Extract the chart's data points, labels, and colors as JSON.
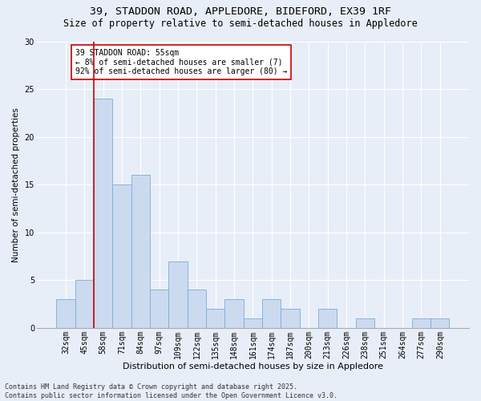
{
  "title1": "39, STADDON ROAD, APPLEDORE, BIDEFORD, EX39 1RF",
  "title2": "Size of property relative to semi-detached houses in Appledore",
  "xlabel": "Distribution of semi-detached houses by size in Appledore",
  "ylabel": "Number of semi-detached properties",
  "categories": [
    "32sqm",
    "45sqm",
    "58sqm",
    "71sqm",
    "84sqm",
    "97sqm",
    "109sqm",
    "122sqm",
    "135sqm",
    "148sqm",
    "161sqm",
    "174sqm",
    "187sqm",
    "200sqm",
    "213sqm",
    "226sqm",
    "238sqm",
    "251sqm",
    "264sqm",
    "277sqm",
    "290sqm"
  ],
  "values": [
    3,
    5,
    24,
    15,
    16,
    4,
    7,
    4,
    2,
    3,
    1,
    3,
    2,
    0,
    2,
    0,
    1,
    0,
    0,
    1,
    1
  ],
  "bar_color": "#ccdaf0",
  "bar_edge_color": "#7aadd4",
  "highlight_bar_index": 2,
  "highlight_line_color": "#cc0000",
  "bg_color": "#e8eef8",
  "annotation_text": "39 STADDON ROAD: 55sqm\n← 8% of semi-detached houses are smaller (7)\n92% of semi-detached houses are larger (80) →",
  "annotation_box_color": "#ffffff",
  "annotation_box_edge": "#cc0000",
  "ylim": [
    0,
    30
  ],
  "yticks": [
    0,
    5,
    10,
    15,
    20,
    25,
    30
  ],
  "footer": "Contains HM Land Registry data © Crown copyright and database right 2025.\nContains public sector information licensed under the Open Government Licence v3.0.",
  "title1_fontsize": 9.5,
  "title2_fontsize": 8.5,
  "xlabel_fontsize": 8,
  "ylabel_fontsize": 7.5,
  "tick_fontsize": 7,
  "annotation_fontsize": 7,
  "footer_fontsize": 6
}
